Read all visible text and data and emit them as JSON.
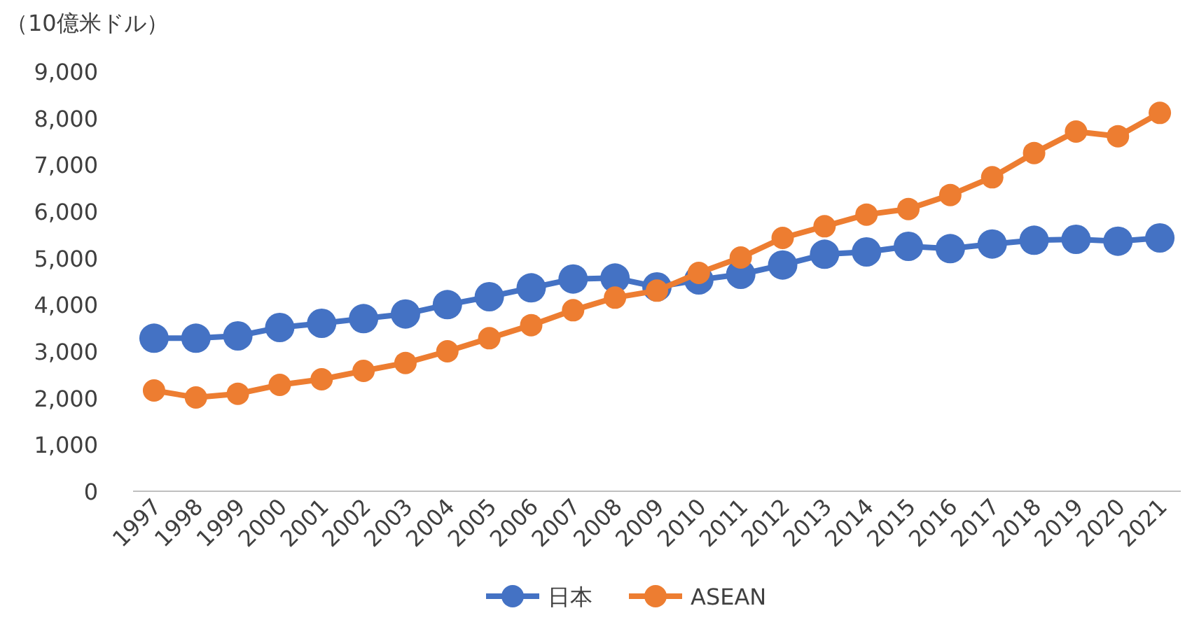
{
  "chart_data": {
    "type": "line",
    "ylabel": "（10億米ドル）",
    "categories": [
      "1997",
      "1998",
      "1999",
      "2000",
      "2001",
      "2002",
      "2003",
      "2004",
      "2005",
      "2006",
      "2007",
      "2008",
      "2009",
      "2010",
      "2011",
      "2012",
      "2013",
      "2014",
      "2015",
      "2016",
      "2017",
      "2018",
      "2019",
      "2020",
      "2021"
    ],
    "series": [
      {
        "name": "日本",
        "color": "#4472c4",
        "values": [
          3280,
          3280,
          3330,
          3510,
          3600,
          3700,
          3800,
          4000,
          4170,
          4360,
          4550,
          4570,
          4380,
          4530,
          4650,
          4850,
          5080,
          5130,
          5250,
          5200,
          5300,
          5380,
          5400,
          5360,
          5430
        ]
      },
      {
        "name": "ASEAN",
        "color": "#ed7d31",
        "values": [
          2160,
          2010,
          2090,
          2280,
          2400,
          2580,
          2750,
          3000,
          3280,
          3560,
          3880,
          4150,
          4300,
          4680,
          5010,
          5430,
          5680,
          5930,
          6050,
          6350,
          6730,
          7250,
          7710,
          7610,
          8110
        ]
      }
    ],
    "ylim": [
      0,
      9000
    ],
    "yticks": [
      0,
      {
        "value": 1000,
        "label": "1,000"
      },
      {
        "value": 2000,
        "label": "2,000"
      },
      {
        "value": 3000,
        "label": "3,000"
      },
      {
        "value": 4000,
        "label": "4,000"
      },
      {
        "value": 5000,
        "label": "5,000"
      },
      {
        "value": 6000,
        "label": "6,000"
      },
      {
        "value": 7000,
        "label": "7,000"
      },
      {
        "value": 8000,
        "label": "8,000"
      },
      {
        "value": 9000,
        "label": "9,000"
      }
    ],
    "grid": false,
    "legend": "bottom",
    "marker": "circle",
    "line_style": "solid"
  }
}
